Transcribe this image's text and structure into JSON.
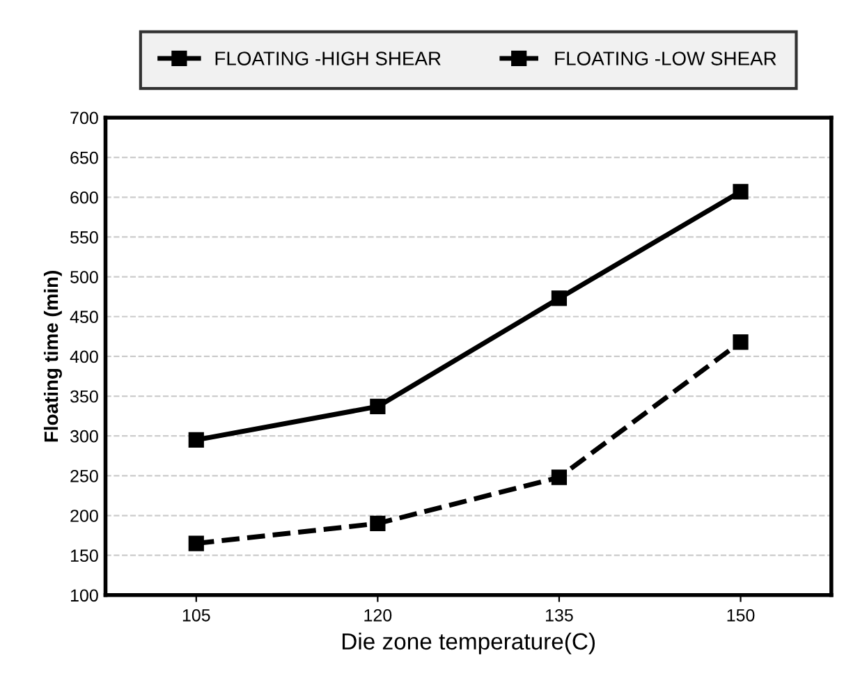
{
  "chart_data": {
    "type": "line",
    "xlabel": "Die zone temperature(C)",
    "ylabel": "Floating time (min)",
    "categories": [
      "105",
      "120",
      "135",
      "150"
    ],
    "series": [
      {
        "name": "FLOATING -HIGH SHEAR",
        "color": "#000000",
        "values": [
          295,
          337,
          473,
          607
        ],
        "line_style": "solid"
      },
      {
        "name": "FLOATING -LOW SHEAR",
        "color": "#000000",
        "values": [
          165,
          190,
          248,
          418
        ],
        "line_style": "dashed"
      }
    ],
    "ylim": [
      100,
      700
    ],
    "yticks": [
      100,
      150,
      200,
      250,
      300,
      350,
      400,
      450,
      500,
      550,
      600,
      650,
      700
    ],
    "grid": "y",
    "legend": "top",
    "marker": "square"
  }
}
